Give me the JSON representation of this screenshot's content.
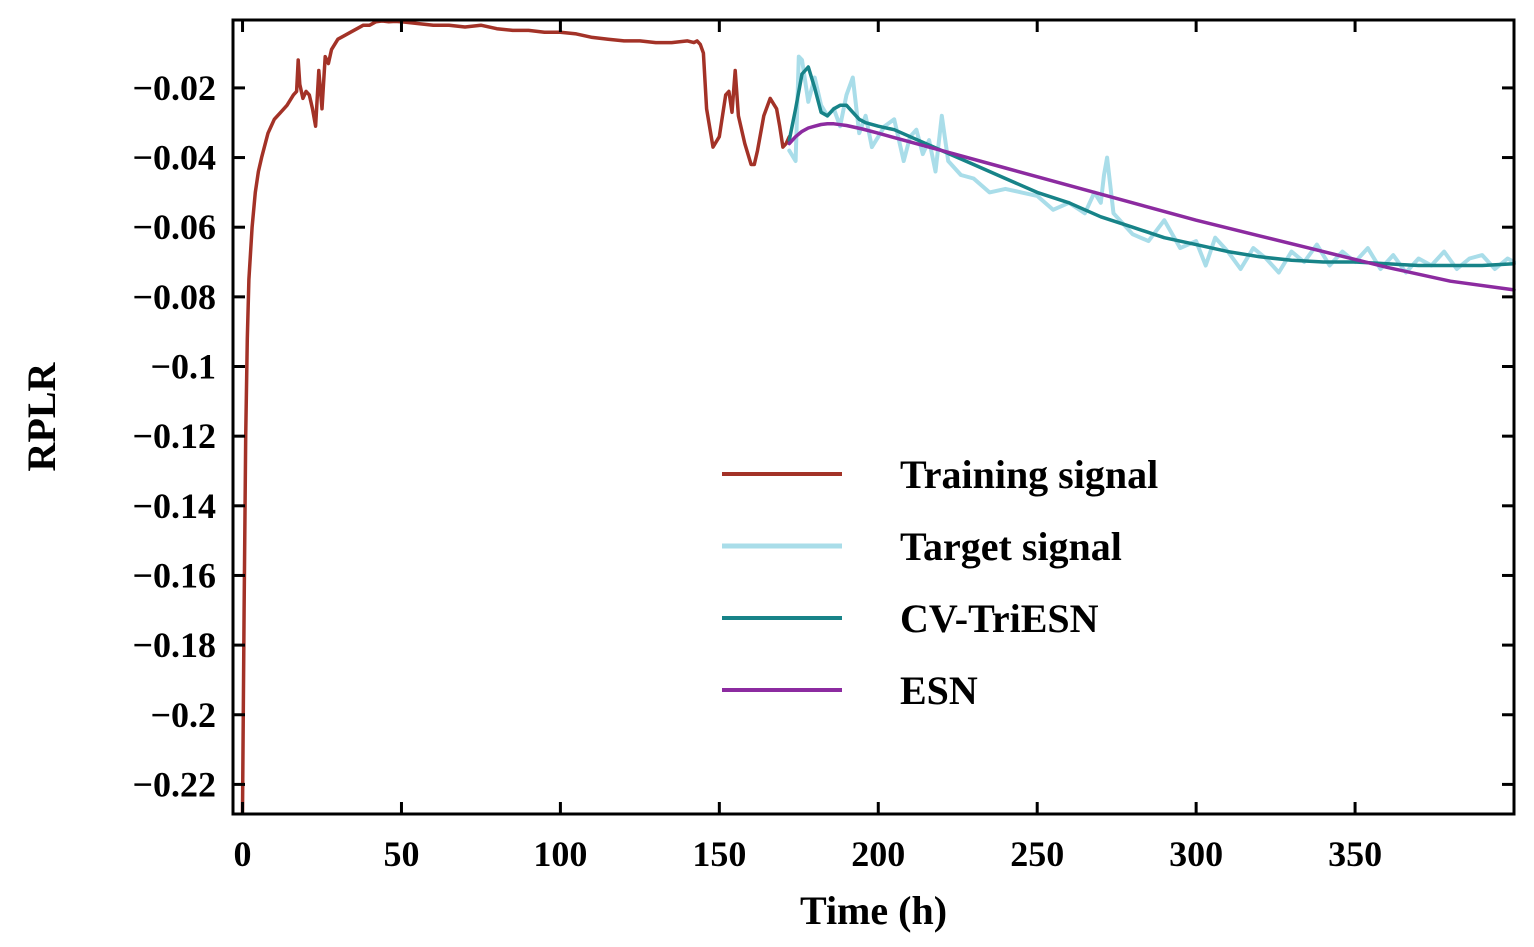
{
  "chart_data": {
    "type": "line",
    "xlabel": "Time (h)",
    "ylabel": "RPLR",
    "xlim": [
      -3,
      400
    ],
    "ylim": [
      -0.2285,
      -0.0005
    ],
    "x_ticks": [
      0,
      50,
      100,
      150,
      200,
      250,
      300,
      350
    ],
    "x_tick_labels": [
      "0",
      "50",
      "100",
      "150",
      "200",
      "250",
      "300",
      "350"
    ],
    "y_ticks": [
      -0.02,
      -0.04,
      -0.06,
      -0.08,
      -0.1,
      -0.12,
      -0.14,
      -0.16,
      -0.18,
      -0.2,
      -0.22
    ],
    "y_tick_labels": [
      "−0.02",
      "−0.04",
      "−0.06",
      "−0.08",
      "−0.1",
      "−0.12",
      "−0.14",
      "−0.16",
      "−0.18",
      "−0.2",
      "−0.22"
    ],
    "grid": false,
    "legend_position": "center-right",
    "series": [
      {
        "name": "Training signal",
        "color": "#a33227",
        "x": [
          0,
          0.5,
          1,
          1.5,
          2,
          3,
          4,
          5,
          6,
          8,
          10,
          12,
          14,
          16,
          17,
          17.5,
          18,
          19,
          20,
          21,
          22,
          23,
          24,
          25,
          26,
          27,
          28,
          30,
          32,
          34,
          36,
          38,
          40,
          42,
          44,
          46,
          48,
          50,
          55,
          60,
          65,
          70,
          75,
          80,
          85,
          90,
          95,
          100,
          105,
          110,
          115,
          120,
          125,
          130,
          135,
          140,
          142,
          143,
          144,
          145,
          146,
          148,
          150,
          152,
          153,
          154,
          155,
          156,
          158,
          160,
          161,
          162,
          164,
          166,
          168,
          169,
          170,
          171,
          172
        ],
        "y": [
          -0.228,
          -0.17,
          -0.12,
          -0.092,
          -0.075,
          -0.06,
          -0.05,
          -0.044,
          -0.04,
          -0.033,
          -0.029,
          -0.027,
          -0.025,
          -0.022,
          -0.021,
          -0.012,
          -0.019,
          -0.023,
          -0.021,
          -0.022,
          -0.026,
          -0.031,
          -0.015,
          -0.026,
          -0.011,
          -0.013,
          -0.009,
          -0.006,
          -0.005,
          -0.004,
          -0.003,
          -0.002,
          -0.002,
          -0.001,
          -0.0008,
          -0.001,
          -0.0009,
          -0.001,
          -0.0015,
          -0.002,
          -0.002,
          -0.0025,
          -0.002,
          -0.003,
          -0.0035,
          -0.0035,
          -0.004,
          -0.004,
          -0.0045,
          -0.0055,
          -0.006,
          -0.0065,
          -0.0065,
          -0.007,
          -0.007,
          -0.0065,
          -0.007,
          -0.0065,
          -0.0075,
          -0.01,
          -0.026,
          -0.037,
          -0.034,
          -0.022,
          -0.021,
          -0.027,
          -0.015,
          -0.028,
          -0.036,
          -0.042,
          -0.042,
          -0.038,
          -0.028,
          -0.023,
          -0.026,
          -0.031,
          -0.037,
          -0.036,
          -0.034
        ]
      },
      {
        "name": "Target signal",
        "color": "#a9dde9",
        "x": [
          172,
          174,
          175,
          176,
          178,
          180,
          182,
          184,
          186,
          188,
          190,
          192,
          194,
          196,
          198,
          200,
          202,
          205,
          208,
          210,
          212,
          214,
          216,
          218,
          220,
          222,
          226,
          230,
          235,
          240,
          245,
          250,
          255,
          260,
          265,
          268,
          270,
          271,
          272,
          274,
          276,
          280,
          285,
          290,
          295,
          300,
          303,
          306,
          310,
          314,
          318,
          322,
          326,
          330,
          334,
          338,
          342,
          346,
          350,
          354,
          358,
          362,
          366,
          370,
          374,
          378,
          382,
          386,
          390,
          394,
          398,
          400
        ],
        "y": [
          -0.038,
          -0.041,
          -0.011,
          -0.012,
          -0.024,
          -0.017,
          -0.025,
          -0.028,
          -0.026,
          -0.031,
          -0.022,
          -0.017,
          -0.033,
          -0.028,
          -0.037,
          -0.034,
          -0.031,
          -0.029,
          -0.041,
          -0.034,
          -0.032,
          -0.039,
          -0.035,
          -0.044,
          -0.028,
          -0.041,
          -0.045,
          -0.046,
          -0.05,
          -0.049,
          -0.05,
          -0.051,
          -0.055,
          -0.053,
          -0.056,
          -0.05,
          -0.053,
          -0.045,
          -0.04,
          -0.056,
          -0.058,
          -0.062,
          -0.064,
          -0.058,
          -0.066,
          -0.064,
          -0.071,
          -0.063,
          -0.067,
          -0.072,
          -0.066,
          -0.069,
          -0.073,
          -0.067,
          -0.07,
          -0.065,
          -0.071,
          -0.067,
          -0.07,
          -0.066,
          -0.072,
          -0.068,
          -0.073,
          -0.069,
          -0.071,
          -0.067,
          -0.072,
          -0.069,
          -0.068,
          -0.072,
          -0.069,
          -0.07
        ]
      },
      {
        "name": "CV-TriESN",
        "color": "#178388",
        "x": [
          172,
          174,
          176,
          178,
          180,
          182,
          184,
          186,
          188,
          190,
          192,
          194,
          196,
          200,
          205,
          210,
          220,
          230,
          240,
          250,
          260,
          270,
          280,
          290,
          300,
          310,
          320,
          330,
          340,
          350,
          360,
          370,
          380,
          390,
          400
        ],
        "y": [
          -0.035,
          -0.026,
          -0.016,
          -0.014,
          -0.02,
          -0.027,
          -0.028,
          -0.026,
          -0.025,
          -0.025,
          -0.027,
          -0.029,
          -0.03,
          -0.031,
          -0.032,
          -0.034,
          -0.038,
          -0.042,
          -0.046,
          -0.05,
          -0.053,
          -0.057,
          -0.06,
          -0.063,
          -0.065,
          -0.067,
          -0.0685,
          -0.0695,
          -0.07,
          -0.07,
          -0.0705,
          -0.071,
          -0.071,
          -0.071,
          -0.0705
        ]
      },
      {
        "name": "ESN",
        "color": "#8c2ba0",
        "x": [
          172,
          174,
          176,
          178,
          180,
          182,
          184,
          186,
          190,
          195,
          200,
          210,
          220,
          240,
          260,
          280,
          300,
          320,
          340,
          360,
          380,
          400
        ],
        "y": [
          -0.036,
          -0.034,
          -0.0325,
          -0.0315,
          -0.031,
          -0.0305,
          -0.0303,
          -0.0303,
          -0.0308,
          -0.0318,
          -0.033,
          -0.0355,
          -0.038,
          -0.043,
          -0.048,
          -0.053,
          -0.058,
          -0.0625,
          -0.067,
          -0.0715,
          -0.0755,
          -0.078
        ]
      }
    ]
  }
}
